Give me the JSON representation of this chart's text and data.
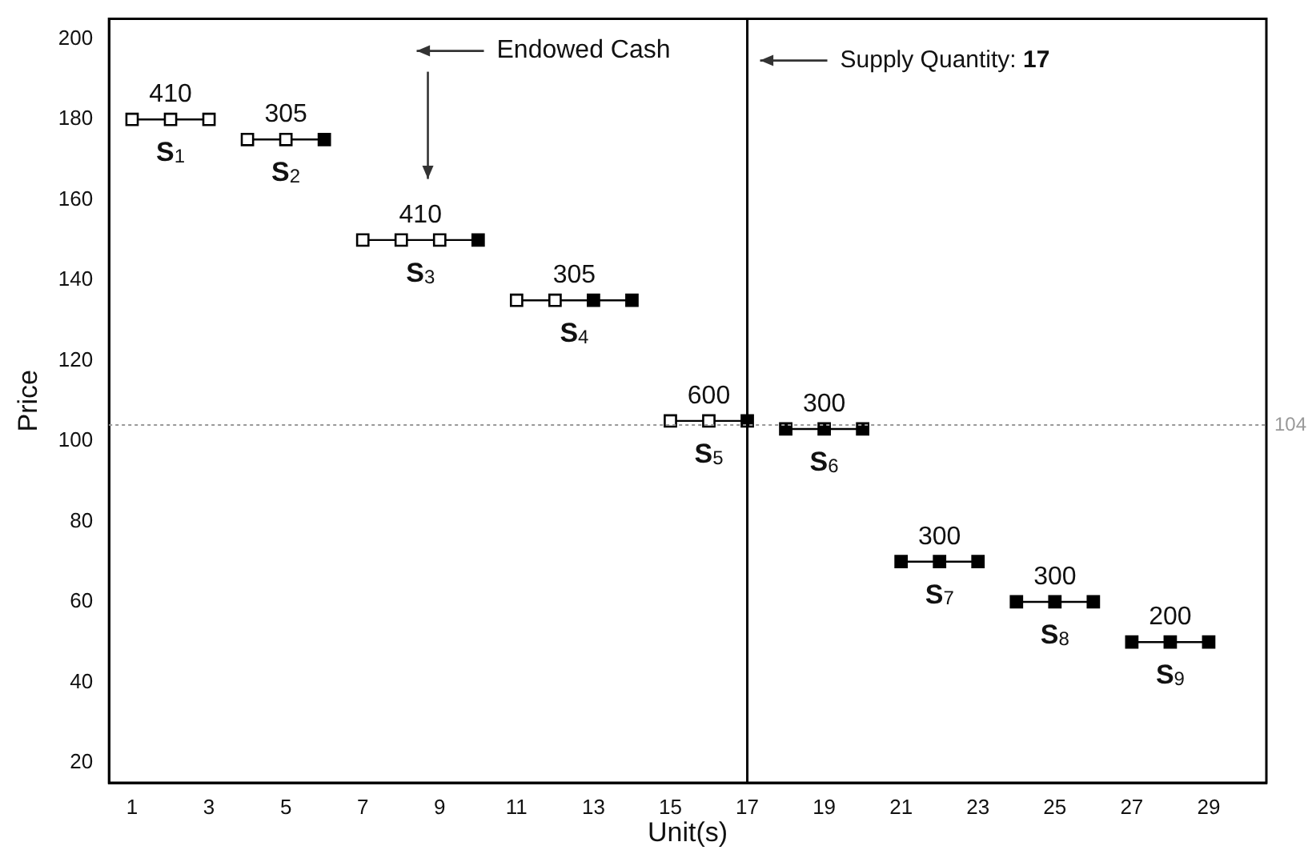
{
  "chart_data": {
    "type": "line",
    "xlabel": "Unit(s)",
    "ylabel": "Price",
    "xlim": [
      0.4,
      30.5
    ],
    "xticks": [
      1,
      3,
      5,
      7,
      9,
      11,
      13,
      15,
      17,
      19,
      21,
      23,
      25,
      27,
      29
    ],
    "ylim": [
      15,
      205
    ],
    "yticks": [
      20,
      40,
      60,
      80,
      100,
      120,
      140,
      160,
      180,
      200
    ],
    "grid": false,
    "legend": false,
    "marker": "square",
    "line_style": "solid",
    "series": [
      {
        "name": "S$_{1}$",
        "color": "#000000",
        "x": [
          1,
          2,
          3
        ],
        "values": [
          180,
          180,
          180
        ],
        "colors": [
          "#ffffff",
          "#ffffff",
          "#ffffff"
        ]
      },
      {
        "name": "S$_{2}$",
        "color": "#000000",
        "x": [
          4,
          5,
          6
        ],
        "values": [
          175,
          175,
          175
        ],
        "colors": [
          "#ffffff",
          "#ffffff",
          "#000000"
        ]
      },
      {
        "name": "S$_{3}$",
        "color": "#000000",
        "x": [
          7,
          8,
          9,
          10
        ],
        "values": [
          150,
          150,
          150,
          150
        ],
        "colors": [
          "#ffffff",
          "#ffffff",
          "#ffffff",
          "#000000"
        ]
      },
      {
        "name": "S$_{4}$",
        "color": "#000000",
        "x": [
          11,
          12,
          13,
          14
        ],
        "values": [
          135,
          135,
          135,
          135
        ],
        "colors": [
          "#ffffff",
          "#ffffff",
          "#000000",
          "#000000"
        ]
      },
      {
        "name": "S$_{5}$",
        "color": "#000000",
        "x": [
          15,
          16,
          17
        ],
        "values": [
          105,
          105,
          105
        ],
        "colors": [
          "#ffffff",
          "#ffffff",
          "#000000"
        ]
      },
      {
        "name": "S$_{6}$",
        "color": "#000000",
        "x": [
          18,
          19,
          20
        ],
        "values": [
          103,
          103,
          103
        ],
        "colors": [
          "#000000",
          "#000000",
          "#000000"
        ]
      },
      {
        "name": "S$_{7}$",
        "color": "#000000",
        "x": [
          21,
          22,
          23
        ],
        "values": [
          70,
          70,
          70
        ],
        "colors": [
          "#000000",
          "#000000",
          "#000000"
        ]
      },
      {
        "name": "S$_{8}$",
        "color": "#000000",
        "x": [
          24,
          25,
          26
        ],
        "values": [
          60,
          60,
          60
        ],
        "colors": [
          "#000000",
          "#000000",
          "#000000"
        ]
      },
      {
        "name": "S$_{9}$",
        "color": "#000000",
        "x": [
          27,
          28,
          29
        ],
        "values": [
          50,
          50,
          50
        ],
        "colors": [
          "#000000",
          "#000000",
          "#000000"
        ]
      }
    ],
    "ref_lines": [
      {
        "axis": "y",
        "value": 104,
        "label": "104",
        "color": "#999999",
        "line_style": "dotted"
      },
      {
        "axis": "x",
        "value": 17,
        "label": "Supply Quantity: 17",
        "color": "#000000",
        "line_style": "solid"
      }
    ],
    "annotations": [
      {
        "text": "410",
        "x": 2,
        "y": 180
      },
      {
        "text": "305",
        "x": 5,
        "y": 175
      },
      {
        "text": "410",
        "x": 8.5,
        "y": 150
      },
      {
        "text": "305",
        "x": 12.5,
        "y": 135
      },
      {
        "text": "600",
        "x": 16,
        "y": 105
      },
      {
        "text": "300",
        "x": 19,
        "y": 103
      },
      {
        "text": "300",
        "x": 22,
        "y": 70
      },
      {
        "text": "300",
        "x": 25,
        "y": 60
      },
      {
        "text": "200",
        "x": 28,
        "y": 50
      },
      "Endowed Cash"
    ]
  }
}
